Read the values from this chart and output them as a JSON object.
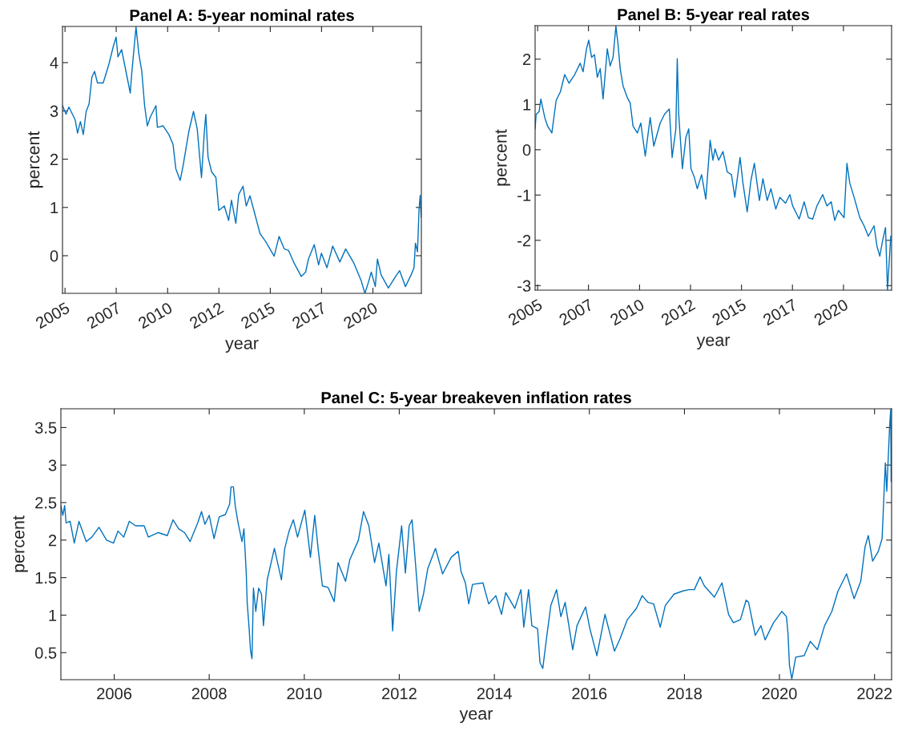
{
  "chart_data": [
    {
      "type": "line",
      "title": "Panel A: 5-year nominal rates",
      "xlabel": "year",
      "ylabel": "percent",
      "x": [
        "2004-11-17",
        "2005-01-19",
        "2005-03-11",
        "2005-05-01",
        "2005-07-02",
        "2005-08-12",
        "2005-10-02",
        "2005-11-22",
        "2006-01-12",
        "2006-03-04",
        "2006-04-24",
        "2006-06-11",
        "2006-08-01",
        "2006-11-11",
        "2007-02-21",
        "2007-05-09",
        "2007-06-29",
        "2007-08-01",
        "2007-10-05",
        "2007-12-21",
        "2008-03-07",
        "2008-04-01",
        "2008-06-17",
        "2008-08-07",
        "2008-09-28",
        "2008-11-17",
        "2009-01-05",
        "2009-02-25",
        "2009-06-07",
        "2009-07-02",
        "2009-10-13",
        "2010-01-23",
        "2010-04-06",
        "2010-05-27",
        "2010-08-12",
        "2010-10-02",
        "2011-01-12",
        "2011-04-06",
        "2011-06-11",
        "2011-08-26",
        "2011-10-16",
        "2011-11-11",
        "2011-12-21",
        "2012-02-21",
        "2012-05-09",
        "2012-06-29",
        "2012-10-05",
        "2012-12-21",
        "2013-02-10",
        "2013-04-28",
        "2013-06-18",
        "2013-09-03",
        "2013-10-31",
        "2014-01-05",
        "2014-03-22",
        "2014-07-02",
        "2014-10-13",
        "2015-03-11",
        "2015-06-07",
        "2015-09-06",
        "2015-11-22",
        "2016-03-03",
        "2016-07-05",
        "2016-09-20",
        "2016-11-10",
        "2017-02-21",
        "2017-05-09",
        "2017-06-29",
        "2017-10-05",
        "2018-01-16",
        "2018-05-23",
        "2018-09-03",
        "2019-01-30",
        "2019-06-07",
        "2019-08-12",
        "2019-10-13",
        "2019-12-03",
        "2020-02-13",
        "2020-03-21",
        "2020-05-27",
        "2020-10-02",
        "2021-02-07",
        "2021-04-21",
        "2021-08-01",
        "2021-11-10",
        "2022-01-01",
        "2022-01-27",
        "2022-03-04",
        "2022-04-01",
        "2022-04-21",
        "2022-05-09"
      ],
      "series": [
        {
          "color": "#0072bd",
          "values": [
            3.11,
            2.93,
            3.08,
            2.96,
            2.81,
            2.54,
            2.78,
            2.51,
            2.99,
            3.14,
            3.7,
            3.82,
            3.58,
            3.58,
            3.97,
            4.33,
            4.53,
            4.12,
            4.27,
            3.82,
            3.37,
            3.76,
            4.74,
            4.18,
            3.82,
            3.11,
            2.69,
            2.87,
            3.11,
            2.66,
            2.69,
            2.51,
            2.31,
            1.8,
            1.56,
            1.86,
            2.57,
            2.99,
            2.63,
            1.62,
            2.57,
            2.93,
            2.04,
            1.74,
            1.62,
            0.94,
            1.03,
            0.73,
            1.15,
            0.67,
            1.27,
            1.44,
            1.03,
            1.24,
            0.91,
            0.46,
            0.29,
            -0.01,
            0.4,
            0.14,
            0.11,
            -0.16,
            -0.43,
            -0.34,
            -0.07,
            0.23,
            -0.19,
            0.05,
            -0.25,
            0.2,
            -0.13,
            0.14,
            -0.16,
            -0.52,
            -0.78,
            -0.55,
            -0.34,
            -0.64,
            -0.07,
            -0.4,
            -0.67,
            -0.43,
            -0.31,
            -0.64,
            -0.4,
            -0.25,
            0.26,
            0.08,
            0.97,
            1.25,
            0.8
          ]
        }
      ],
      "xlim": [
        "2004-11-17",
        "2022-05-12"
      ],
      "ylim": [
        -0.78,
        4.75
      ],
      "xticks": [
        {
          "value": "2005-01-01",
          "label": "2005"
        },
        {
          "value": "2007-07-01",
          "label": "2007"
        },
        {
          "value": "2010-01-01",
          "label": "2010"
        },
        {
          "value": "2012-07-01",
          "label": "2012"
        },
        {
          "value": "2015-01-01",
          "label": "2015"
        },
        {
          "value": "2017-07-01",
          "label": "2017"
        },
        {
          "value": "2020-01-01",
          "label": "2020"
        }
      ],
      "yticks": [
        0,
        1,
        2,
        3,
        4
      ]
    },
    {
      "type": "line",
      "title": "Panel B: 5-year real rates",
      "xlabel": "year",
      "ylabel": "percent",
      "x": [
        "2004-11-17",
        "2004-12-05",
        "2005-01-27",
        "2005-02-28",
        "2005-05-09",
        "2005-06-29",
        "2005-09-13",
        "2005-11-29",
        "2006-02-13",
        "2006-05-01",
        "2006-07-17",
        "2006-10-27",
        "2007-02-03",
        "2007-03-26",
        "2007-05-27",
        "2007-07-05",
        "2007-08-26",
        "2007-10-16",
        "2007-12-06",
        "2008-01-27",
        "2008-03-18",
        "2008-06-02",
        "2008-07-23",
        "2008-09-13",
        "2008-11-03",
        "2008-12-09",
        "2009-01-19",
        "2009-03-11",
        "2009-05-27",
        "2009-07-17",
        "2009-09-06",
        "2009-11-22",
        "2010-01-23",
        "2010-04-13",
        "2010-07-10",
        "2010-09-13",
        "2011-01-05",
        "2011-03-22",
        "2011-06-18",
        "2011-08-07",
        "2011-10-13",
        "2011-11-07",
        "2011-12-03",
        "2012-02-07",
        "2012-04-09",
        "2012-05-31",
        "2012-07-10",
        "2012-09-09",
        "2012-10-30",
        "2013-01-16",
        "2013-04-01",
        "2013-06-18",
        "2013-08-07",
        "2013-09-13",
        "2013-11-17",
        "2014-02-03",
        "2014-04-21",
        "2014-07-05",
        "2014-09-03",
        "2014-12-06",
        "2015-01-27",
        "2015-04-13",
        "2015-06-18",
        "2015-08-19",
        "2015-11-17",
        "2016-01-19",
        "2016-04-05",
        "2016-06-10",
        "2016-09-06",
        "2016-11-17",
        "2017-02-28",
        "2017-05-16",
        "2017-07-05",
        "2017-10-30",
        "2018-01-27",
        "2018-04-13",
        "2018-06-29",
        "2018-09-13",
        "2018-12-25",
        "2019-03-11",
        "2019-05-27",
        "2019-07-28",
        "2019-10-02",
        "2020-01-12",
        "2020-03-03",
        "2020-04-24",
        "2020-07-09",
        "2020-10-20",
        "2021-01-05",
        "2021-03-22",
        "2021-07-02",
        "2021-08-23",
        "2021-10-13",
        "2021-12-03",
        "2022-01-23",
        "2022-02-28",
        "2022-04-01",
        "2022-04-27"
      ],
      "series": [
        {
          "color": "#0072bd",
          "values": [
            0.46,
            0.78,
            0.84,
            1.12,
            0.71,
            0.52,
            0.37,
            1.09,
            1.28,
            1.66,
            1.47,
            1.66,
            1.91,
            1.72,
            2.23,
            2.42,
            2.04,
            2.1,
            1.6,
            1.79,
            1.12,
            2.23,
            1.85,
            2.04,
            2.73,
            2.35,
            1.79,
            1.41,
            1.15,
            1.03,
            0.52,
            0.37,
            0.59,
            -0.14,
            0.71,
            0.08,
            0.59,
            0.78,
            0.9,
            -0.17,
            0.46,
            2.01,
            0.78,
            -0.42,
            0.27,
            0.46,
            -0.42,
            -0.61,
            -0.86,
            -0.55,
            -1.09,
            0.21,
            -0.23,
            0.02,
            -0.23,
            -0.04,
            -0.49,
            -0.55,
            -1.05,
            -0.17,
            -0.74,
            -1.37,
            -0.68,
            -0.3,
            -1.12,
            -0.64,
            -1.12,
            -0.86,
            -1.31,
            -1.05,
            -1.18,
            -0.99,
            -1.24,
            -1.53,
            -1.15,
            -1.5,
            -1.53,
            -1.24,
            -0.99,
            -1.24,
            -1.15,
            -1.56,
            -1.34,
            -1.5,
            -0.3,
            -0.74,
            -1.05,
            -1.5,
            -1.68,
            -1.91,
            -1.68,
            -2.13,
            -2.35,
            -2.0,
            -1.72,
            -3.1,
            -2.44,
            -1.91
          ]
        }
      ],
      "xlim": [
        "2004-11-17",
        "2022-05-12"
      ],
      "ylim": [
        -3.1,
        2.74
      ],
      "xticks": [
        {
          "value": "2005-01-01",
          "label": "2005"
        },
        {
          "value": "2007-07-01",
          "label": "2007"
        },
        {
          "value": "2010-01-01",
          "label": "2010"
        },
        {
          "value": "2012-07-01",
          "label": "2012"
        },
        {
          "value": "2015-01-01",
          "label": "2015"
        },
        {
          "value": "2017-07-01",
          "label": "2017"
        },
        {
          "value": "2020-01-01",
          "label": "2020"
        }
      ],
      "yticks": [
        -3,
        -2,
        -1,
        0,
        1,
        2
      ]
    },
    {
      "type": "line",
      "title": "Panel C: 5-year breakeven inflation rates",
      "xlabel": "year",
      "ylabel": "percent",
      "x": [
        "2004-11-17",
        "2004-12-02",
        "2004-12-16",
        "2004-12-27",
        "2005-01-27",
        "2005-02-28",
        "2005-04-05",
        "2005-05-31",
        "2005-07-13",
        "2005-09-06",
        "2005-11-03",
        "2005-12-27",
        "2006-01-30",
        "2006-03-15",
        "2006-04-27",
        "2006-06-14",
        "2006-08-19",
        "2006-09-20",
        "2006-12-06",
        "2007-02-13",
        "2007-03-29",
        "2007-05-12",
        "2007-06-25",
        "2007-08-07",
        "2007-10-05",
        "2007-11-03",
        "2007-11-29",
        "2008-01-01",
        "2008-02-07",
        "2008-03-18",
        "2008-05-04",
        "2008-06-06",
        "2008-06-17",
        "2008-07-05",
        "2008-07-19",
        "2008-08-10",
        "2008-09-09",
        "2008-09-24",
        "2008-10-12",
        "2008-10-19",
        "2008-11-03",
        "2008-11-14",
        "2008-11-25",
        "2008-12-06",
        "2008-12-24",
        "2009-01-15",
        "2009-02-06",
        "2009-02-21",
        "2009-03-22",
        "2009-05-16",
        "2009-07-09",
        "2009-08-04",
        "2009-09-06",
        "2009-10-09",
        "2009-11-10",
        "2010-01-05",
        "2010-02-17",
        "2010-03-22",
        "2010-04-17",
        "2010-05-20",
        "2010-07-02",
        "2010-08-19",
        "2010-09-17",
        "2010-11-14",
        "2010-12-17",
        "2011-02-21",
        "2011-04-01",
        "2011-05-12",
        "2011-06-25",
        "2011-07-28",
        "2011-09-21",
        "2011-10-13",
        "2011-11-11",
        "2011-12-10",
        "2012-01-19",
        "2012-02-17",
        "2012-03-17",
        "2012-04-08",
        "2012-05-11",
        "2012-06-02",
        "2012-07-05",
        "2012-08-07",
        "2012-10-05",
        "2012-11-29",
        "2013-02-03",
        "2013-03-29",
        "2013-04-20",
        "2013-05-23",
        "2013-06-18",
        "2013-07-17",
        "2013-10-05",
        "2013-11-18",
        "2014-01-12",
        "2014-02-25",
        "2014-03-29",
        "2014-06-07",
        "2014-07-24",
        "2014-08-15",
        "2014-09-21",
        "2014-10-16",
        "2014-11-29",
        "2014-12-17",
        "2015-01-08",
        "2015-02-07",
        "2015-03-11",
        "2015-04-24",
        "2015-05-27",
        "2015-06-29",
        "2015-08-26",
        "2015-09-28",
        "2015-12-03",
        "2016-01-05",
        "2016-02-28",
        "2016-04-30",
        "2016-07-12",
        "2016-08-25",
        "2016-10-19",
        "2016-12-28",
        "2017-02-10",
        "2017-03-26",
        "2017-05-09",
        "2017-06-29",
        "2017-08-07",
        "2017-10-13",
        "2017-12-17",
        "2018-02-03",
        "2018-03-18",
        "2018-05-01",
        "2018-06-03",
        "2018-08-19",
        "2018-10-16",
        "2018-12-06",
        "2019-01-12",
        "2019-03-07",
        "2019-04-20",
        "2019-05-09",
        "2019-06-29",
        "2019-08-12",
        "2019-09-13",
        "2019-11-17",
        "2020-01-19",
        "2020-02-24",
        "2020-03-07",
        "2020-03-18",
        "2020-04-05",
        "2020-05-05",
        "2020-07-09",
        "2020-08-25",
        "2020-10-19",
        "2020-12-13",
        "2021-02-07",
        "2021-03-26",
        "2021-05-31",
        "2021-07-28",
        "2021-09-17",
        "2021-10-20",
        "2021-11-14",
        "2021-12-17",
        "2022-01-30",
        "2022-02-28",
        "2022-03-25",
        "2022-04-05",
        "2022-04-27",
        "2022-05-05",
        "2022-05-09"
      ],
      "series": [
        {
          "color": "#0072bd",
          "values": [
            2.46,
            2.33,
            2.46,
            2.23,
            2.25,
            1.96,
            2.25,
            1.98,
            2.04,
            2.17,
            2.0,
            1.96,
            2.12,
            2.04,
            2.25,
            2.19,
            2.19,
            2.04,
            2.1,
            2.06,
            2.27,
            2.15,
            2.1,
            1.98,
            2.23,
            2.38,
            2.21,
            2.33,
            2.02,
            2.31,
            2.34,
            2.48,
            2.71,
            2.71,
            2.46,
            2.23,
            1.98,
            2.15,
            1.55,
            1.17,
            0.82,
            0.52,
            0.42,
            1.36,
            1.05,
            1.36,
            1.28,
            0.86,
            1.47,
            1.89,
            1.47,
            1.89,
            2.12,
            2.27,
            2.04,
            2.4,
            1.77,
            2.33,
            1.89,
            1.39,
            1.37,
            1.18,
            1.7,
            1.45,
            1.74,
            2.0,
            2.38,
            2.19,
            1.7,
            1.96,
            1.39,
            1.81,
            0.79,
            1.58,
            2.19,
            1.56,
            2.19,
            2.27,
            1.55,
            1.05,
            1.28,
            1.62,
            1.89,
            1.55,
            1.77,
            1.85,
            1.58,
            1.43,
            1.15,
            1.41,
            1.43,
            1.15,
            1.26,
            1.01,
            1.3,
            1.09,
            1.34,
            0.84,
            1.34,
            0.86,
            0.82,
            0.37,
            0.29,
            0.71,
            1.13,
            1.34,
            0.98,
            1.17,
            0.54,
            0.86,
            1.11,
            0.82,
            0.46,
            1.01,
            0.52,
            0.69,
            0.94,
            1.09,
            1.26,
            1.17,
            1.15,
            0.84,
            1.13,
            1.28,
            1.32,
            1.34,
            1.34,
            1.51,
            1.39,
            1.24,
            1.43,
            1.01,
            0.9,
            0.94,
            1.2,
            1.17,
            0.73,
            0.86,
            0.67,
            0.9,
            1.05,
            0.98,
            0.75,
            0.33,
            0.15,
            0.44,
            0.46,
            0.65,
            0.54,
            0.86,
            1.05,
            1.32,
            1.55,
            1.22,
            1.45,
            1.91,
            2.06,
            1.72,
            1.85,
            2.02,
            3.03,
            2.65,
            3.52,
            3.74,
            2.78
          ]
        }
      ],
      "xlim": [
        "2004-11-17",
        "2022-05-12"
      ],
      "ylim": [
        0.14,
        3.75
      ],
      "xticks": [
        {
          "value": "2006",
          "label": "2006"
        },
        {
          "value": "2008",
          "label": "2008"
        },
        {
          "value": "2010",
          "label": "2010"
        },
        {
          "value": "2012",
          "label": "2012"
        },
        {
          "value": "2014",
          "label": "2014"
        },
        {
          "value": "2016",
          "label": "2016"
        },
        {
          "value": "2018",
          "label": "2018"
        },
        {
          "value": "2020",
          "label": "2020"
        },
        {
          "value": "2022",
          "label": "2022"
        }
      ],
      "yticks": [
        0.5,
        1,
        1.5,
        2,
        2.5,
        3,
        3.5
      ]
    }
  ]
}
